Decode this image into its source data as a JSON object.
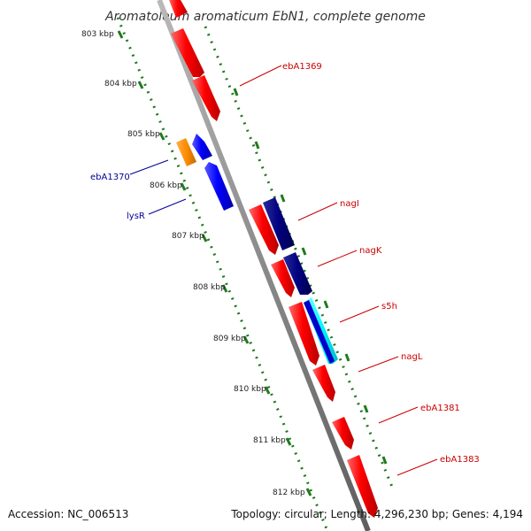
{
  "title": "Aromatoleum aromaticum EbN1, complete genome",
  "footer": {
    "accession": "Accession: NC_006513",
    "topology": "Topology: circular; Length: 4,296,230 bp; Genes: 4,194"
  },
  "colors": {
    "backbone": "#8a8a8a",
    "scale_ticks": "#1e7a1e",
    "forward_gene": "#ff0000",
    "reverse_gene": "#0000ff",
    "navy_gene": "#000080",
    "orange_gene": "#ff8c00",
    "cyan_gene": "#00ffff",
    "label_red": "#cc0000",
    "label_blue": "#000099"
  },
  "scale_labels": [
    "803 kbp",
    "804 kbp",
    "805 kbp",
    "806 kbp",
    "807 kbp",
    "808 kbp",
    "809 kbp",
    "810 kbp",
    "811 kbp",
    "812 kbp"
  ],
  "gene_labels": [
    {
      "text": "ebA1369",
      "color": "red"
    },
    {
      "text": "ebA1370",
      "color": "blue"
    },
    {
      "text": "lysR",
      "color": "blue"
    },
    {
      "text": "nagI",
      "color": "red"
    },
    {
      "text": "nagK",
      "color": "red"
    },
    {
      "text": "s5h",
      "color": "red"
    },
    {
      "text": "nagL",
      "color": "red"
    },
    {
      "text": "ebA1381",
      "color": "red"
    },
    {
      "text": "ebA1383",
      "color": "red"
    }
  ]
}
